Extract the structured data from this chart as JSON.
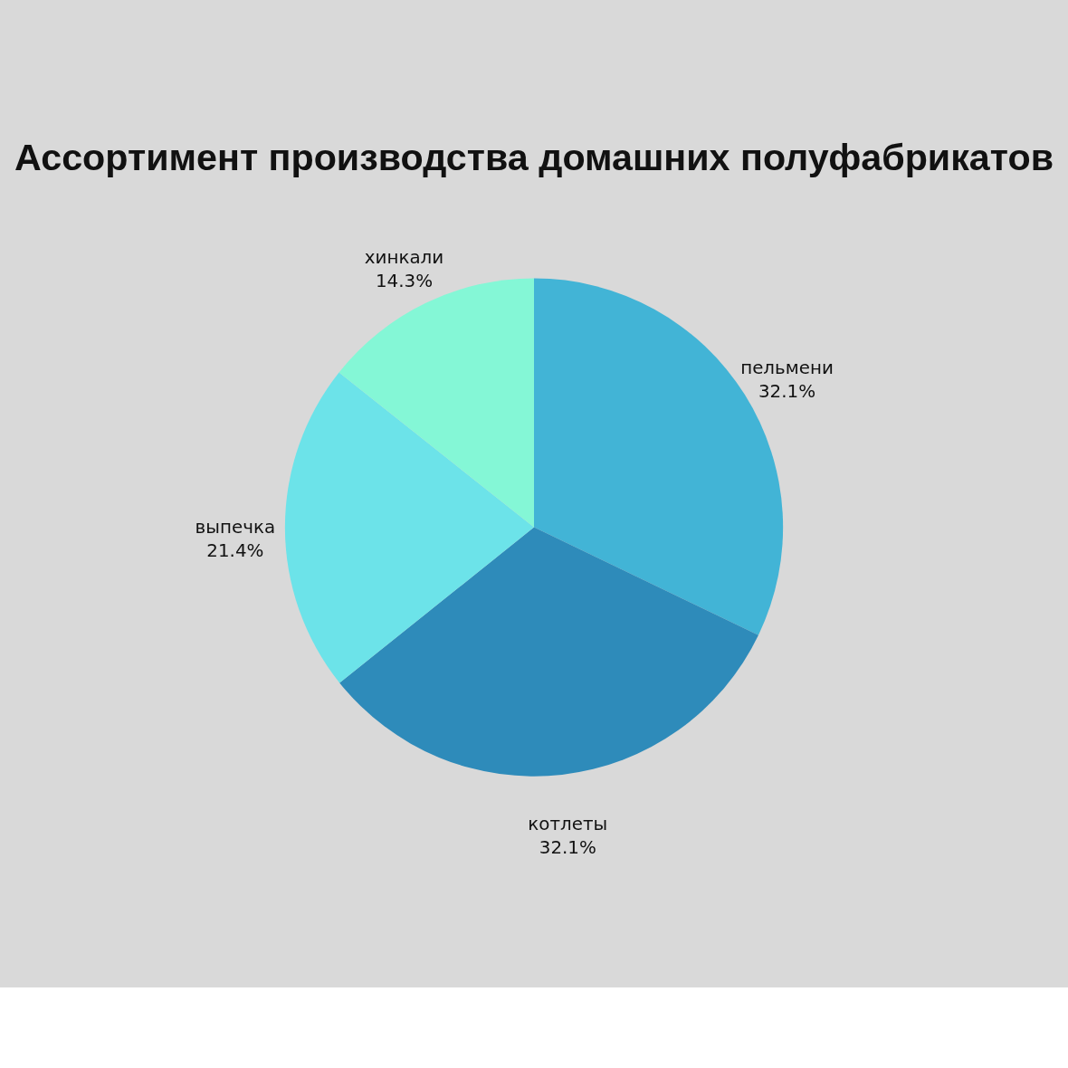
{
  "chart_data": {
    "type": "pie",
    "title": "Ассортимент производства\nдомашних полуфабрикатов",
    "categories": [
      "пельмени",
      "котлеты",
      "выпечка",
      "хинкали"
    ],
    "values": [
      32.1,
      32.1,
      21.4,
      14.3
    ],
    "value_labels": [
      "32.1%",
      "32.1%",
      "21.4%",
      "14.3%"
    ],
    "colors": [
      "#42b4d6",
      "#2e8bba",
      "#6ce3e9",
      "#84f7d6"
    ],
    "legend": false
  }
}
